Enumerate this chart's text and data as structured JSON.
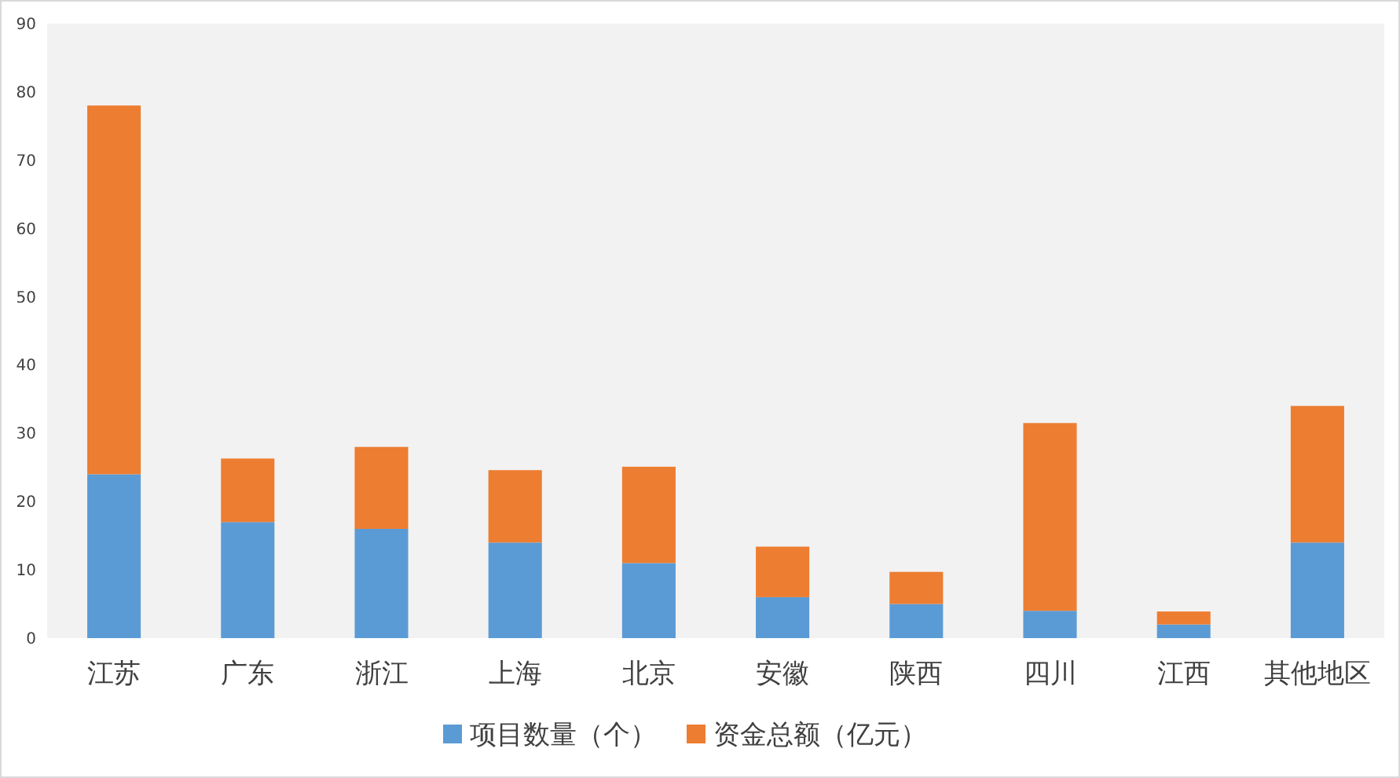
{
  "chart_data": {
    "type": "bar",
    "stacked": true,
    "categories": [
      "江苏",
      "广东",
      "浙江",
      "上海",
      "北京",
      "安徽",
      "陕西",
      "四川",
      "江西",
      "其他地区"
    ],
    "series": [
      {
        "name": "项目数量（个）",
        "color": "#5b9bd5",
        "values": [
          24,
          17,
          16,
          14,
          11,
          6,
          5,
          4,
          2,
          14
        ]
      },
      {
        "name": "资金总额（亿元）",
        "color": "#ed7d31",
        "values": [
          54,
          9.3,
          12,
          10.6,
          14.1,
          7.4,
          4.7,
          27.5,
          1.9,
          20
        ]
      }
    ],
    "ylim": [
      0,
      90
    ],
    "yticks": [
      0,
      10,
      20,
      30,
      40,
      50,
      60,
      70,
      80,
      90
    ],
    "grid": false,
    "legend": "bottom"
  }
}
